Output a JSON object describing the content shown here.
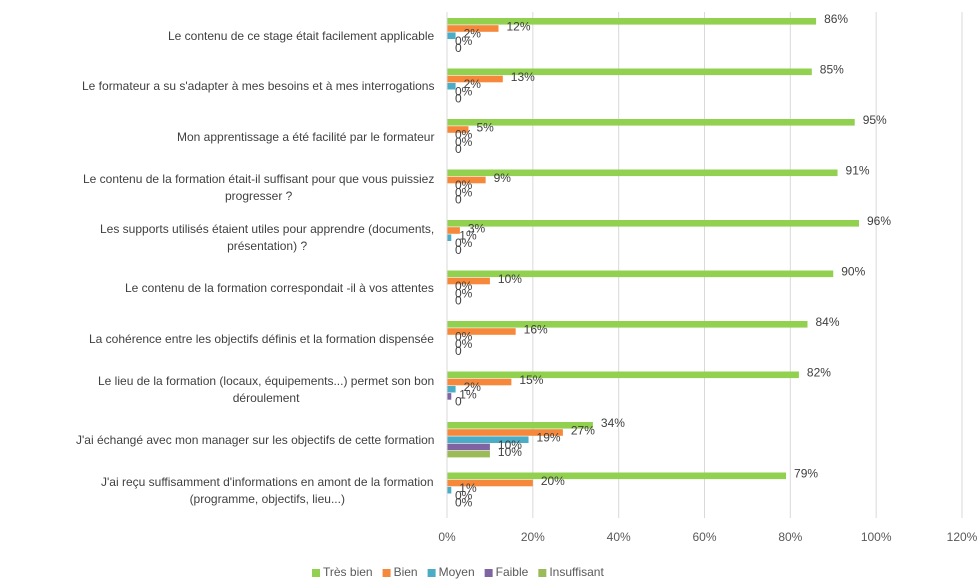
{
  "chart_data": {
    "type": "hbar",
    "categories": [
      "Le contenu de ce stage était facilement applicable",
      "Le formateur a su s'adapter à mes besoins et à mes interrogations",
      "Mon apprentissage a été facilité par le formateur",
      "Le contenu de la formation était-il suffisant pour que vous puissiez\nprogresser ?",
      "Les supports utilisés étaient utiles pour apprendre (documents,\nprésentation) ?",
      "Le contenu de la formation correspondait -il à vos attentes",
      "La cohérence entre les objectifs définis et la formation dispensée",
      "Le lieu de la formation (locaux, équipements...) permet son bon\ndéroulement",
      "J'ai échangé avec mon manager sur les objectifs de cette formation",
      "J'ai reçu suffisamment d'informations en amont de la formation\n(programme, objectifs, lieu...)"
    ],
    "series": [
      {
        "name": "Très bien",
        "color": "#92d050",
        "values": [
          86,
          85,
          95,
          91,
          96,
          90,
          84,
          82,
          34,
          79
        ],
        "value_labels": [
          "86%",
          "85%",
          "95%",
          "91%",
          "96%",
          "90%",
          "84%",
          "82%",
          "34%",
          "79%"
        ]
      },
      {
        "name": "Bien",
        "color": "#f5883a",
        "values": [
          12,
          13,
          5,
          9,
          3,
          10,
          16,
          15,
          27,
          20
        ],
        "value_labels": [
          "12%",
          "13%",
          "5%",
          "9%",
          "3%",
          "10%",
          "16%",
          "15%",
          "27%",
          "20%"
        ]
      },
      {
        "name": "Moyen",
        "color": "#4bacc6",
        "values": [
          2,
          2,
          0,
          0,
          1,
          0,
          0,
          2,
          19,
          1
        ],
        "value_labels": [
          "2%",
          "2%",
          "0%",
          "0%",
          "1%",
          "0%",
          "0%",
          "2%",
          "19%",
          "1%"
        ]
      },
      {
        "name": "Faible",
        "color": "#8064a2",
        "values": [
          0,
          0,
          0,
          0,
          0,
          0,
          0,
          1,
          10,
          0
        ],
        "value_labels": [
          "0%",
          "0%",
          "0%",
          "0%",
          "0%",
          "0%",
          "0%",
          "1%",
          "10%",
          "0%"
        ]
      },
      {
        "name": "Insuffisant",
        "color": "#9bbb59",
        "values": [
          0,
          0,
          0,
          0,
          0,
          0,
          0,
          0,
          10,
          0
        ],
        "value_labels": [
          "0",
          "0",
          "0",
          "0",
          "0",
          "0",
          "0",
          "0",
          "10%",
          "0%"
        ]
      }
    ],
    "xlim": [
      0,
      120
    ],
    "xticks": [
      {
        "value": 0,
        "label": "0%"
      },
      {
        "value": 20,
        "label": "20%"
      },
      {
        "value": 40,
        "label": "40%"
      },
      {
        "value": 60,
        "label": "60%"
      },
      {
        "value": 80,
        "label": "80%"
      },
      {
        "value": 100,
        "label": "100%"
      },
      {
        "value": 120,
        "label": "120%"
      }
    ],
    "grid": true,
    "legend": "bottom"
  }
}
